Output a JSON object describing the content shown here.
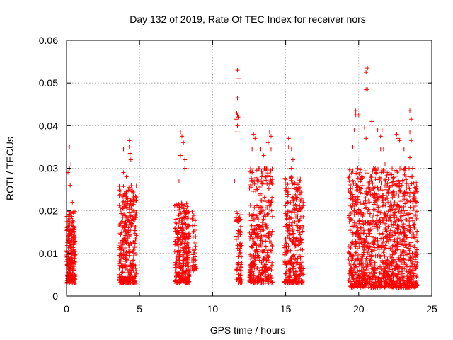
{
  "chart_data": {
    "type": "scatter",
    "title": "Day 132 of 2019, Rate Of TEC Index for receiver nors",
    "xlabel": "GPS time / hours",
    "ylabel": "ROTI / TECUs",
    "xlim": [
      0,
      25
    ],
    "ylim": [
      0,
      0.06
    ],
    "xticks": [
      0,
      5,
      10,
      15,
      20,
      25
    ],
    "yticks": [
      0,
      0.01,
      0.02,
      0.03,
      0.04,
      0.05,
      0.06
    ],
    "xtick_labels": [
      "0",
      "5",
      "10",
      "15",
      "20",
      "25"
    ],
    "ytick_labels": [
      "0",
      "0.01",
      "0.02",
      "0.03",
      "0.04",
      "0.05",
      "0.06"
    ],
    "grid": true,
    "marker": "plus",
    "marker_color": "#ff0000",
    "series": [
      {
        "name": "ROTI",
        "clusters": [
          {
            "x_range": [
              0.0,
              0.6
            ],
            "y_range": [
              0.003,
              0.02
            ],
            "count": 260
          },
          {
            "x_range": [
              3.6,
              4.8
            ],
            "y_range": [
              0.003,
              0.026
            ],
            "count": 360
          },
          {
            "x_range": [
              7.4,
              8.4
            ],
            "y_range": [
              0.003,
              0.022
            ],
            "count": 300
          },
          {
            "x_range": [
              8.6,
              8.9
            ],
            "y_range": [
              0.006,
              0.02
            ],
            "count": 40
          },
          {
            "x_range": [
              11.6,
              12.0
            ],
            "y_range": [
              0.003,
              0.02
            ],
            "count": 80
          },
          {
            "x_range": [
              12.5,
              14.1
            ],
            "y_range": [
              0.003,
              0.03
            ],
            "count": 380
          },
          {
            "x_range": [
              14.9,
              16.2
            ],
            "y_range": [
              0.003,
              0.028
            ],
            "count": 340
          },
          {
            "x_range": [
              19.3,
              24.0
            ],
            "y_range": [
              0.002,
              0.03
            ],
            "count": 1300
          }
        ],
        "points": [
          [
            0.2,
            0.035
          ],
          [
            0.2,
            0.03
          ],
          [
            0.3,
            0.031
          ],
          [
            0.1,
            0.029
          ],
          [
            0.25,
            0.026
          ],
          [
            0.4,
            0.022
          ],
          [
            3.9,
            0.0345
          ],
          [
            4.3,
            0.0365
          ],
          [
            4.3,
            0.035
          ],
          [
            4.35,
            0.0335
          ],
          [
            4.4,
            0.032
          ],
          [
            3.9,
            0.029
          ],
          [
            4.1,
            0.028
          ],
          [
            7.8,
            0.0385
          ],
          [
            7.9,
            0.0375
          ],
          [
            8.0,
            0.036
          ],
          [
            7.8,
            0.033
          ],
          [
            8.1,
            0.032
          ],
          [
            8.1,
            0.03
          ],
          [
            7.7,
            0.027
          ],
          [
            11.7,
            0.053
          ],
          [
            11.8,
            0.051
          ],
          [
            11.7,
            0.0465
          ],
          [
            11.65,
            0.043
          ],
          [
            11.7,
            0.0425
          ],
          [
            11.75,
            0.042
          ],
          [
            11.6,
            0.0415
          ],
          [
            11.7,
            0.04
          ],
          [
            11.6,
            0.0385
          ],
          [
            11.8,
            0.0385
          ],
          [
            11.5,
            0.027
          ],
          [
            12.8,
            0.038
          ],
          [
            12.9,
            0.037
          ],
          [
            12.7,
            0.0345
          ],
          [
            13.3,
            0.0345
          ],
          [
            13.5,
            0.033
          ],
          [
            13.9,
            0.0385
          ],
          [
            14.0,
            0.0375
          ],
          [
            13.8,
            0.036
          ],
          [
            14.0,
            0.0345
          ],
          [
            13.6,
            0.028
          ],
          [
            15.2,
            0.037
          ],
          [
            15.2,
            0.035
          ],
          [
            15.4,
            0.0345
          ],
          [
            15.5,
            0.032
          ],
          [
            15.4,
            0.03
          ],
          [
            16.0,
            0.0275
          ],
          [
            16.0,
            0.027
          ],
          [
            19.6,
            0.035
          ],
          [
            19.7,
            0.039
          ],
          [
            19.8,
            0.0435
          ],
          [
            19.8,
            0.0425
          ],
          [
            20.0,
            0.0425
          ],
          [
            20.5,
            0.0525
          ],
          [
            20.6,
            0.0535
          ],
          [
            20.6,
            0.0485
          ],
          [
            20.5,
            0.0485
          ],
          [
            20.9,
            0.041
          ],
          [
            20.4,
            0.0395
          ],
          [
            20.5,
            0.037
          ],
          [
            21.3,
            0.039
          ],
          [
            21.6,
            0.039
          ],
          [
            21.5,
            0.0375
          ],
          [
            21.5,
            0.0345
          ],
          [
            21.7,
            0.0345
          ],
          [
            21.8,
            0.031
          ],
          [
            22.6,
            0.038
          ],
          [
            22.7,
            0.037
          ],
          [
            22.8,
            0.0365
          ],
          [
            23.1,
            0.0345
          ],
          [
            23.5,
            0.0435
          ],
          [
            23.6,
            0.0415
          ],
          [
            23.5,
            0.0385
          ],
          [
            23.6,
            0.0365
          ],
          [
            23.5,
            0.0325
          ],
          [
            23.2,
            0.03
          ],
          [
            23.7,
            0.03
          ]
        ]
      }
    ]
  }
}
